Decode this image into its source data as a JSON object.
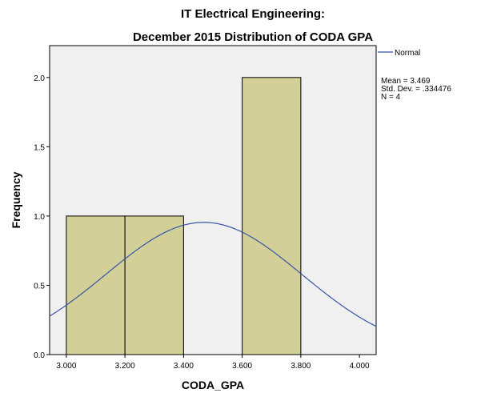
{
  "chart_data": {
    "type": "bar",
    "title": [
      "IT Electrical Engineering:",
      "December 2015 Distribution of CODA GPA"
    ],
    "xlabel": "CODA_GPA",
    "ylabel": "Frequency",
    "bins": [
      {
        "from": 3.0,
        "to": 3.2,
        "count": 1
      },
      {
        "from": 3.2,
        "to": 3.4,
        "count": 1
      },
      {
        "from": 3.6,
        "to": 3.8,
        "count": 2
      }
    ],
    "xlim": [
      2.943,
      4.057
    ],
    "ylim": [
      0,
      2.23
    ],
    "xticks": [
      "3.000",
      "3.200",
      "3.400",
      "3.600",
      "3.800",
      "4.000"
    ],
    "yticks": [
      "0.0",
      "0.5",
      "1.0",
      "1.5",
      "2.0"
    ],
    "normal_curve": {
      "name": "Normal",
      "mean": 3.469,
      "sd": 0.334476,
      "n": 4,
      "bin_width": 0.2
    },
    "stats": [
      "Mean = 3.469",
      "Std. Dev. = .334476",
      "N = 4"
    ],
    "legend_position": "top-right",
    "colors": {
      "bar": "#d3cf98",
      "plot_bg": "#f0f0f0",
      "curve": "#3a54a4"
    },
    "grid": false
  }
}
